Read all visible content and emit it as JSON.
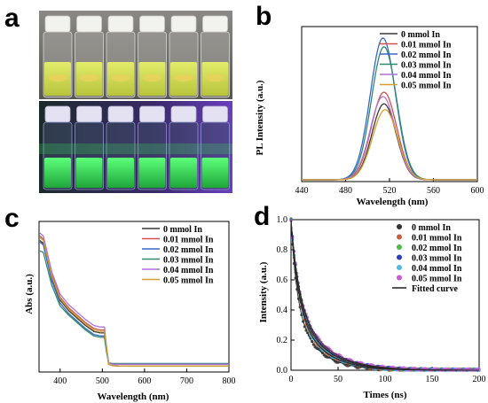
{
  "panels": {
    "a": "a",
    "b": "b",
    "c": "c",
    "d": "d"
  },
  "colors": {
    "s0": "#3a3a3a",
    "s1": "#d0524b",
    "s2": "#3a68c6",
    "s3": "#2e8a6e",
    "s4": "#b071d8",
    "s5": "#d4a02c",
    "d0": "#333333",
    "d1": "#c65f3f",
    "d2": "#4cbc46",
    "d3": "#2b3fb8",
    "d4": "#54b8e6",
    "d5": "#c85ad6",
    "fit": "#2a2a2a",
    "photo_bg_top": "#6f6e6a",
    "photo_bg_bottom": "#2a1f4a",
    "uv_glow": "#37e05b",
    "daylight_liquid": "#cfe05a"
  },
  "photo": {
    "description_free": true,
    "vial_count": 6
  },
  "chart_data": [
    {
      "panel": "b",
      "type": "line",
      "xlabel": "Wavelength (nm)",
      "ylabel": "PL Intensity (a.u.)",
      "xlim": [
        440,
        600
      ],
      "xticks": [
        440,
        480,
        520,
        560,
        600
      ],
      "yticks_shown": false,
      "legend_position": "top-right",
      "series": [
        {
          "name": "0 mmol In",
          "color_key": "s0",
          "peak_nm": 515,
          "peak_rel": 0.52,
          "fwhm_nm": 26
        },
        {
          "name": "0.01 mmol In",
          "color_key": "s1",
          "peak_nm": 515,
          "peak_rel": 0.6,
          "fwhm_nm": 27
        },
        {
          "name": "0.02 mmol In",
          "color_key": "s2",
          "peak_nm": 514,
          "peak_rel": 0.97,
          "fwhm_nm": 27
        },
        {
          "name": "0.03 mmol In",
          "color_key": "s3",
          "peak_nm": 515,
          "peak_rel": 0.91,
          "fwhm_nm": 27
        },
        {
          "name": "0.04 mmol In",
          "color_key": "s4",
          "peak_nm": 514,
          "peak_rel": 0.57,
          "fwhm_nm": 27
        },
        {
          "name": "0.05 mmol In",
          "color_key": "s5",
          "peak_nm": 516,
          "peak_rel": 0.48,
          "fwhm_nm": 27
        }
      ]
    },
    {
      "panel": "c",
      "type": "line",
      "xlabel": "Wavelength (nm)",
      "ylabel": "Abs (a.u.)",
      "xlim": [
        350,
        800
      ],
      "xticks": [
        400,
        500,
        600,
        700,
        800
      ],
      "yticks_shown": false,
      "legend_position": "top-right",
      "x": [
        352,
        360,
        380,
        400,
        420,
        440,
        460,
        480,
        495,
        505,
        510,
        515,
        525,
        550,
        600,
        700,
        800
      ],
      "series": [
        {
          "name": "0 mmol In",
          "color_key": "s0",
          "values": [
            0.87,
            0.85,
            0.62,
            0.47,
            0.4,
            0.35,
            0.3,
            0.26,
            0.25,
            0.25,
            0.14,
            0.04,
            0.03,
            0.028,
            0.028,
            0.028,
            0.028
          ]
        },
        {
          "name": "0.01 mmol In",
          "color_key": "s1",
          "values": [
            0.9,
            0.88,
            0.64,
            0.49,
            0.42,
            0.37,
            0.32,
            0.28,
            0.27,
            0.27,
            0.15,
            0.04,
            0.03,
            0.028,
            0.028,
            0.028,
            0.028
          ]
        },
        {
          "name": "0.02 mmol In",
          "color_key": "s2",
          "values": [
            0.86,
            0.84,
            0.6,
            0.45,
            0.38,
            0.33,
            0.28,
            0.24,
            0.23,
            0.23,
            0.13,
            0.04,
            0.03,
            0.028,
            0.028,
            0.028,
            0.028
          ]
        },
        {
          "name": "0.03 mmol In",
          "color_key": "s3",
          "values": [
            0.8,
            0.79,
            0.57,
            0.43,
            0.37,
            0.32,
            0.27,
            0.23,
            0.22,
            0.22,
            0.12,
            0.05,
            0.045,
            0.045,
            0.045,
            0.045,
            0.045
          ]
        },
        {
          "name": "0.04 mmol In",
          "color_key": "s4",
          "values": [
            0.92,
            0.9,
            0.66,
            0.51,
            0.44,
            0.39,
            0.34,
            0.3,
            0.29,
            0.29,
            0.16,
            0.05,
            0.04,
            0.04,
            0.04,
            0.04,
            0.04
          ]
        },
        {
          "name": "0.05 mmol In",
          "color_key": "s5",
          "values": [
            0.89,
            0.87,
            0.63,
            0.48,
            0.41,
            0.36,
            0.31,
            0.27,
            0.26,
            0.26,
            0.15,
            0.04,
            0.03,
            0.028,
            0.028,
            0.028,
            0.028
          ]
        }
      ]
    },
    {
      "panel": "d",
      "type": "scatter",
      "xlabel": "Times (ns)",
      "ylabel": "Intensity (a.u.)",
      "xlim": [
        0,
        200
      ],
      "ylim": [
        0.0,
        1.0
      ],
      "xticks": [
        0,
        50,
        100,
        150,
        200
      ],
      "yticks": [
        0.0,
        0.2,
        0.4,
        0.6,
        0.8,
        1.0
      ],
      "legend_position": "top-right",
      "series": [
        {
          "name": "0 mmol In",
          "color_key": "d0",
          "a1": 0.55,
          "t1": 6,
          "a2": 0.45,
          "t2": 24
        },
        {
          "name": "0.01 mmol In",
          "color_key": "d1",
          "a1": 0.52,
          "t1": 7,
          "a2": 0.48,
          "t2": 26
        },
        {
          "name": "0.02 mmol In",
          "color_key": "d2",
          "a1": 0.5,
          "t1": 7,
          "a2": 0.5,
          "t2": 28
        },
        {
          "name": "0.03 mmol In",
          "color_key": "d3",
          "a1": 0.5,
          "t1": 8,
          "a2": 0.5,
          "t2": 29
        },
        {
          "name": "0.04 mmol In",
          "color_key": "d4",
          "a1": 0.53,
          "t1": 7,
          "a2": 0.47,
          "t2": 27
        },
        {
          "name": "0.05 mmol In",
          "color_key": "d5",
          "a1": 0.48,
          "t1": 8,
          "a2": 0.52,
          "t2": 30
        }
      ],
      "fit": {
        "name": "Fitted curve",
        "color_key": "fit"
      }
    }
  ]
}
